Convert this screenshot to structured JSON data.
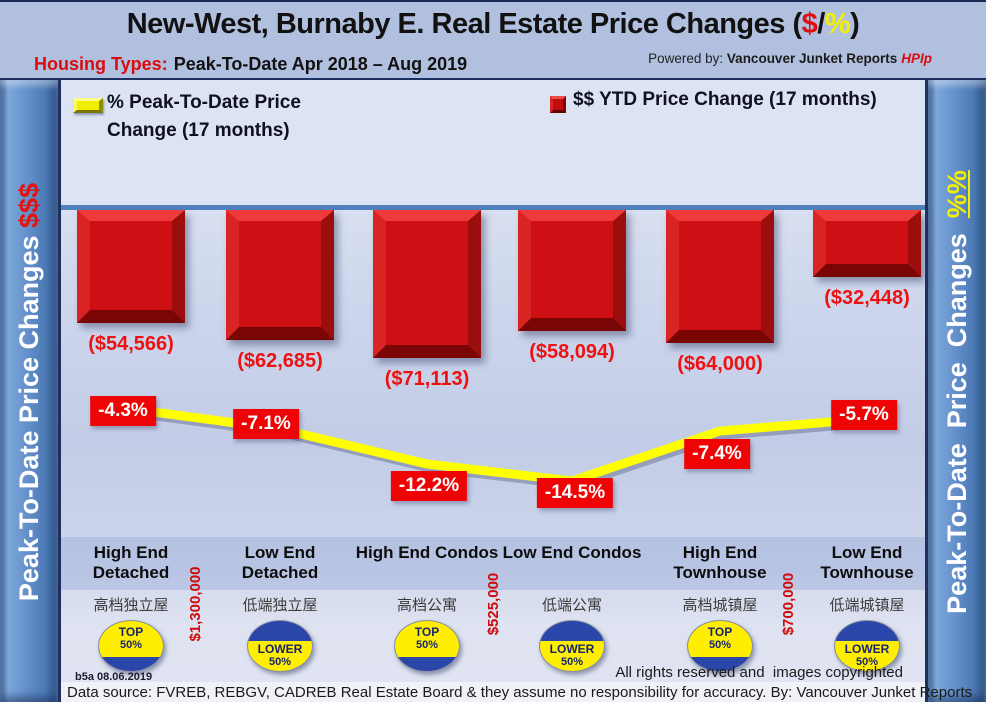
{
  "colors": {
    "accent_red": "#e00f0f",
    "bar_red": "#ce1014",
    "line_yellow": "#ffff00",
    "badge_navy": "#2a46a8",
    "badge_yellow": "#ffee00",
    "sidebar_blue": "#5c87c4",
    "zero_line_blue": "#4f81bd"
  },
  "header": {
    "title_prefix": "New-West, Burnaby E. Real Estate Price Changes (",
    "title_dollar": "$",
    "title_slash": "/",
    "title_percent": "%",
    "title_suffix": ")",
    "housing_label": "Housing Types:",
    "date_range": "Peak-To-Date Apr 2018 – Aug 2019",
    "powered_by": "Powered by:",
    "powered_brand": "Vancouver Junket Reports",
    "powered_product": "HPIp"
  },
  "sidebar_left": {
    "text": "Peak-To-Date Price Changes ",
    "suffix": "$$$"
  },
  "sidebar_right": {
    "text": "Peak-To-Date  Price  Changes  ",
    "suffix": "%%"
  },
  "legend": {
    "line_label": "% Peak-To-Date Price Change (17 months)",
    "bar_label": "$$ YTD Price Change (17 months)"
  },
  "chart_data": {
    "type": "bar",
    "title": "New-West, Burnaby E. Real Estate Price Changes ($/%)",
    "subtitle": "Housing Types: Peak-To-Date Apr 2018 – Aug 2019",
    "categories": [
      "High End Detached",
      "Low End Detached",
      "High End Condos",
      "Low End Condos",
      "High End Townhouse",
      "Low End Townhouse"
    ],
    "categories_zh": [
      "高档独立屋",
      "低端独立屋",
      "高档公寓",
      "低端公寓",
      "高档城镇屋",
      "低端城镇屋"
    ],
    "series": [
      {
        "name": "$$ YTD Price Change (17 months)",
        "type": "bar",
        "color": "#ce1014",
        "values": [
          -54566,
          -62685,
          -71113,
          -58094,
          -64000,
          -32448
        ],
        "labels": [
          "($54,566)",
          "($62,685)",
          "($71,113)",
          "($58,094)",
          "($64,000)",
          "($32,448)"
        ]
      },
      {
        "name": "% Peak-To-Date Price Change (17 months)",
        "type": "line",
        "color": "#ffff00",
        "values": [
          -4.3,
          -7.1,
          -12.2,
          -14.5,
          -7.4,
          -5.7
        ],
        "labels": [
          "-4.3%",
          "-7.1%",
          "-12.2%",
          "-14.5%",
          "-7.4%",
          "-5.7%"
        ]
      }
    ],
    "segment_badges": [
      "TOP 50%",
      "LOWER 50%",
      "TOP 50%",
      "LOWER 50%",
      "TOP 50%",
      "LOWER 50%"
    ],
    "price_thresholds": [
      {
        "text": "$1,300,000",
        "between_columns": [
          1,
          2
        ]
      },
      {
        "text": "$525,000",
        "between_columns": [
          3,
          4
        ]
      },
      {
        "text": "$700,000",
        "between_columns": [
          5,
          6
        ]
      }
    ],
    "legend_position": "top",
    "grid": false,
    "axis_hidden": true
  },
  "footer": {
    "version": "b5a 08.06.2019",
    "rights": "All rights reserved and  images copyrighted",
    "source": "Data source: FVREB, REBGV, CADREB Real Estate Board & they assume no responsibility for accuracy. By: Vancouver Junket Reports"
  }
}
